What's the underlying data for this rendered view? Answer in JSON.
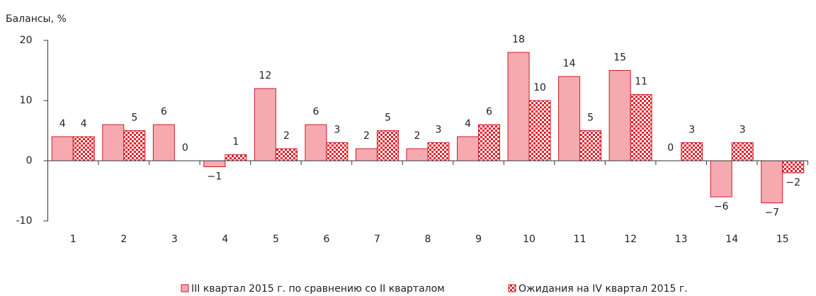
{
  "chart_data": {
    "type": "bar",
    "ylabel": "Балансы, %",
    "categories": [
      "1",
      "2",
      "3",
      "4",
      "5",
      "6",
      "7",
      "8",
      "9",
      "10",
      "11",
      "12",
      "13",
      "14",
      "15"
    ],
    "series": [
      {
        "name": "III квартал 2015 г. по сравнению со II кварталом",
        "color": "#f7a9b0",
        "values": [
          4,
          6,
          6,
          -1,
          12,
          6,
          2,
          2,
          4,
          18,
          14,
          15,
          0,
          -6,
          -7
        ],
        "value_labels": [
          "4",
          null,
          "6",
          "−1",
          "12",
          "6",
          "2",
          "2",
          "4",
          "18",
          "14",
          "15",
          "0",
          "−6",
          "−7"
        ]
      },
      {
        "name": "Ожидания на IV квартал 2015 г.",
        "color": "#e8202a",
        "values": [
          4,
          5,
          0,
          1,
          2,
          3,
          5,
          3,
          6,
          10,
          5,
          11,
          3,
          3,
          -2
        ],
        "value_labels": [
          "4",
          "5",
          "0",
          "1",
          "2",
          "3",
          "5",
          "3",
          "6",
          "10",
          "5",
          "11",
          "3",
          "3",
          "−2"
        ]
      }
    ],
    "ylim": [
      -10,
      20
    ],
    "yticks": [
      -10,
      0,
      10,
      20
    ]
  }
}
